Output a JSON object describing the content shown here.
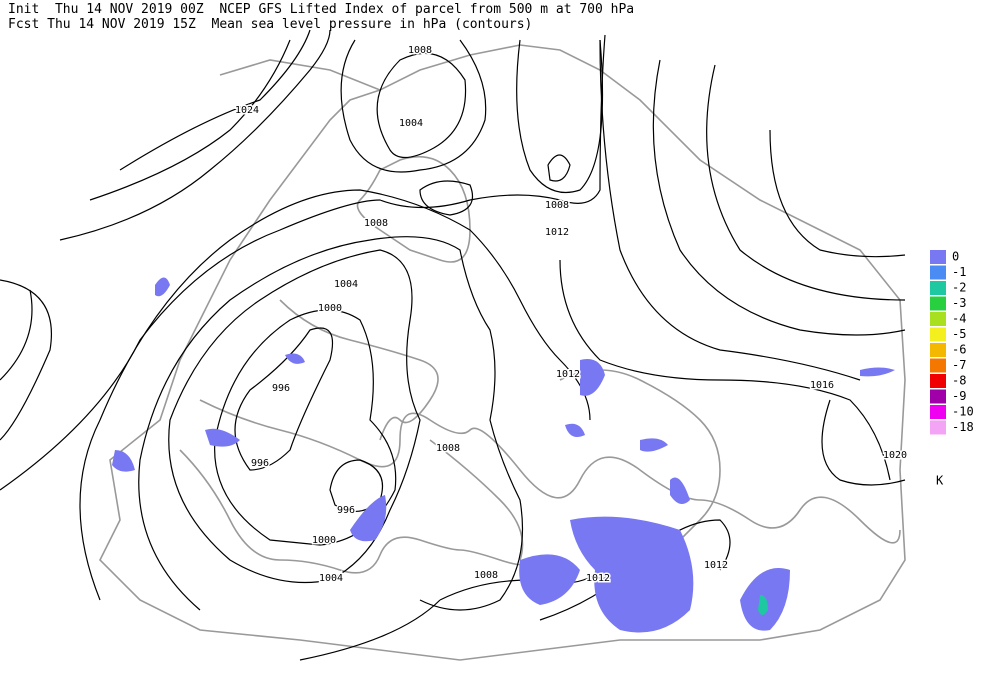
{
  "header": {
    "line1": "Init  Thu 14 NOV 2019 00Z  NCEP GFS Lifted Index of parcel from 500 m at 700 hPa",
    "line2": "Fcst Thu 14 NOV 2019 15Z  Mean sea level pressure in hPa (contours)"
  },
  "contours": [
    {
      "label": "1008"
    },
    {
      "label": "1024"
    },
    {
      "label": "1004"
    },
    {
      "label": "1008"
    },
    {
      "label": "1012"
    },
    {
      "label": "1008"
    },
    {
      "label": "1004"
    },
    {
      "label": "1000"
    },
    {
      "label": "996"
    },
    {
      "label": "996"
    },
    {
      "label": "996"
    },
    {
      "label": "1000"
    },
    {
      "label": "1004"
    },
    {
      "label": "1008"
    },
    {
      "label": "1012"
    },
    {
      "label": "1016"
    },
    {
      "label": "1020"
    },
    {
      "label": "1012"
    },
    {
      "label": "1012"
    },
    {
      "label": "1008"
    }
  ],
  "legend": {
    "unit": "K",
    "items": [
      {
        "label": "0",
        "color": "#7878f2"
      },
      {
        "label": "-1",
        "color": "#4a8cf4"
      },
      {
        "label": "-2",
        "color": "#1ec8a0"
      },
      {
        "label": "-3",
        "color": "#28d040"
      },
      {
        "label": "-4",
        "color": "#a8e020"
      },
      {
        "label": "-5",
        "color": "#f4f020"
      },
      {
        "label": "-6",
        "color": "#f4b800"
      },
      {
        "label": "-7",
        "color": "#f47800"
      },
      {
        "label": "-8",
        "color": "#f00000"
      },
      {
        "label": "-9",
        "color": "#a000a8"
      },
      {
        "label": "-10",
        "color": "#f000f0"
      },
      {
        "label": "-18",
        "color": "#f4a4f4"
      }
    ]
  }
}
